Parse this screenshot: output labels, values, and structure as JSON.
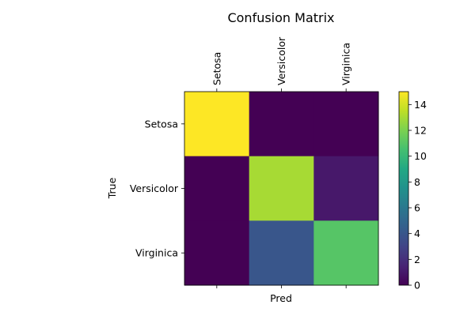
{
  "chart_data": {
    "type": "heatmap",
    "title": "Confusion Matrix",
    "xlabel": "Pred",
    "ylabel": "True",
    "x_categories": [
      "Setosa",
      "Versicolor",
      "Virginica"
    ],
    "y_categories": [
      "Setosa",
      "Versicolor",
      "Virginica"
    ],
    "values": [
      [
        15,
        0,
        0
      ],
      [
        0,
        13,
        1
      ],
      [
        0,
        4,
        11
      ]
    ],
    "colormap": "viridis",
    "colorbar": {
      "min": 0,
      "max": 15,
      "ticks": [
        0,
        2,
        4,
        6,
        8,
        10,
        12,
        14
      ]
    },
    "x_tick_position": "top",
    "grid": false
  }
}
